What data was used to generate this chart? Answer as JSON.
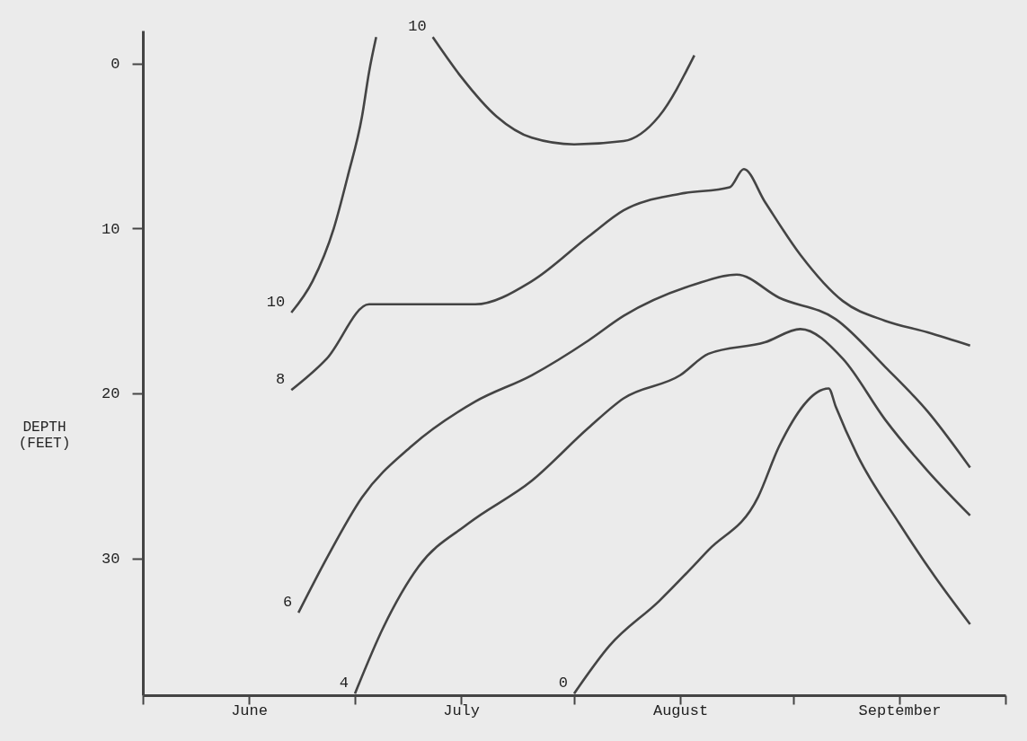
{
  "chart_data": {
    "type": "line",
    "ylabel": "DEPTH (FEET)",
    "legend": false,
    "grid": false,
    "marker": "none",
    "line_style": "solid",
    "xlim": [
      "--06-01",
      "--10-01"
    ],
    "xticks": [
      {
        "value": "--06-01",
        "label": null
      },
      {
        "value": "--06-16",
        "label": "June"
      },
      {
        "value": "--07-01",
        "label": null
      },
      {
        "value": "--07-16",
        "label": "July"
      },
      {
        "value": "--08-01",
        "label": null
      },
      {
        "value": "--08-16",
        "label": "August"
      },
      {
        "value": "--09-01",
        "label": null
      },
      {
        "value": "--09-16",
        "label": "September"
      },
      {
        "value": "--10-01",
        "label": null
      }
    ],
    "ylim": [
      38.3,
      -2
    ],
    "yticks": [
      0,
      10,
      20,
      30
    ],
    "series": [
      {
        "name": "10",
        "color": "#444444",
        "x": [
          "--06-22",
          "--06-25",
          "--06-28",
          "--06-30",
          "--07-02",
          "--07-03",
          "--07-04"
        ],
        "values": [
          15.1,
          13.2,
          10,
          6.8,
          3.2,
          0.5,
          -1.6
        ]
      },
      {
        "name": "10",
        "color": "#444444",
        "x": [
          "--07-12",
          "--07-16",
          "--07-21",
          "--07-26",
          "--08-01",
          "--08-08",
          "--08-13",
          "--08-18"
        ],
        "values": [
          -1.6,
          0.8,
          3.2,
          4.5,
          4.9,
          4.7,
          3.2,
          -0.5
        ]
      },
      {
        "name": "8",
        "color": "#444444",
        "x": [
          "--06-22",
          "--06-27",
          "--07-03",
          "--07-09",
          "--07-18",
          "--07-26",
          "--08-03",
          "--08-08",
          "--08-16",
          "--08-23",
          "--08-25",
          "--08-28",
          "--09-02",
          "--09-08",
          "--09-14",
          "--09-20",
          "--09-26"
        ],
        "values": [
          19.8,
          17.9,
          14.6,
          14.6,
          14.6,
          13.2,
          10.5,
          8.9,
          7.9,
          7.5,
          6.4,
          8.4,
          11.6,
          14.4,
          15.6,
          16.3,
          17.1
        ]
      },
      {
        "name": "6",
        "color": "#444444",
        "x": [
          "--06-23",
          "--06-27",
          "--07-02",
          "--07-09",
          "--07-18",
          "--07-26",
          "--08-03",
          "--08-08",
          "--08-18",
          "--08-24",
          "--08-30",
          "--09-07",
          "--09-14",
          "--09-20",
          "--09-26"
        ],
        "values": [
          33.3,
          30,
          26.3,
          23.2,
          20.5,
          18.9,
          16.8,
          15.3,
          13.4,
          12.8,
          14.2,
          15.5,
          18.4,
          21.1,
          24.5
        ]
      },
      {
        "name": "4",
        "color": "#444444",
        "x": [
          "--07-01",
          "--07-05",
          "--07-10",
          "--07-17",
          "--07-26",
          "--08-03",
          "--08-08",
          "--08-16",
          "--08-20",
          "--08-28",
          "--09-02",
          "--09-08",
          "--09-14",
          "--09-20",
          "--09-26"
        ],
        "values": [
          38.2,
          34.2,
          30.5,
          27.9,
          25.3,
          22.1,
          20.3,
          18.9,
          17.6,
          16.9,
          16.1,
          17.9,
          21.6,
          24.7,
          27.4
        ]
      },
      {
        "name": "0",
        "color": "#444444",
        "x": [
          "--08-01",
          "--08-06",
          "--08-13",
          "--08-20",
          "--08-27",
          "--08-30",
          "--09-06",
          "--09-07",
          "--09-10",
          "--09-16",
          "--09-21",
          "--09-26"
        ],
        "values": [
          38.2,
          35.3,
          32.6,
          29.5,
          26.3,
          23.2,
          19.7,
          20.8,
          23.7,
          27.9,
          31.1,
          34
        ]
      }
    ]
  }
}
